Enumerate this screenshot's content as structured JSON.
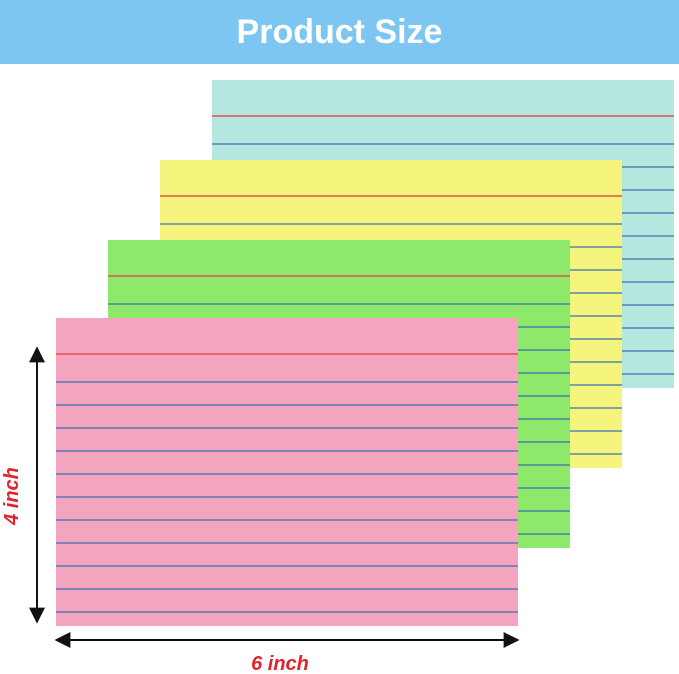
{
  "header": {
    "title": "Product Size"
  },
  "dimensions": {
    "height": "4 inch",
    "width": "6 inch"
  }
}
